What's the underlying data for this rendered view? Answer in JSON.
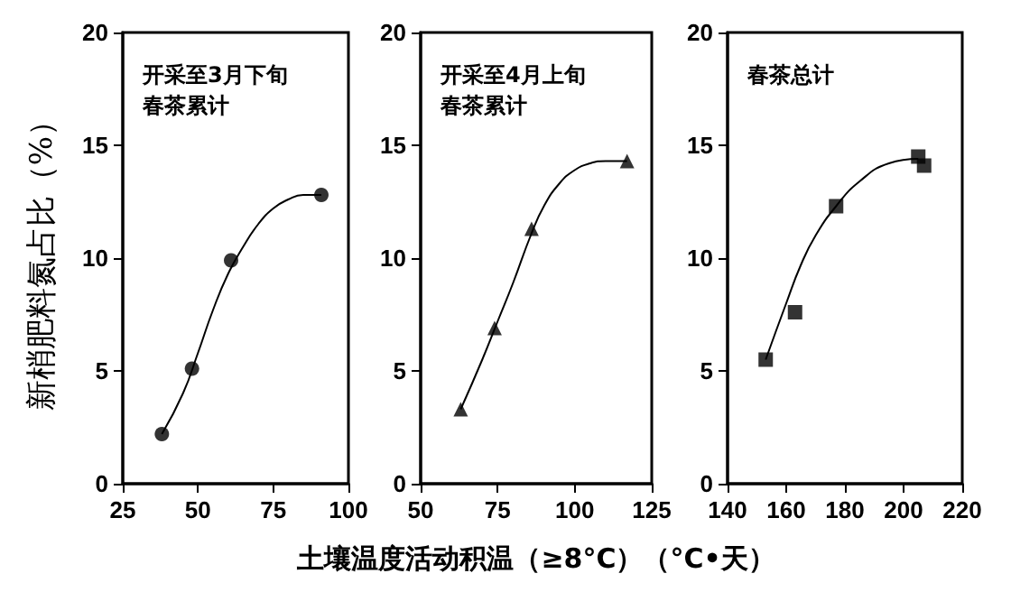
{
  "chart_data": [
    {
      "type": "scatter",
      "title": "开采至3月下旬春茶累计",
      "ylabel": "新梢肥料氮占比（%）",
      "xlim": [
        25,
        100
      ],
      "xticks": [
        25,
        50,
        75,
        100
      ],
      "ylim": [
        0,
        20
      ],
      "yticks": [
        0,
        5,
        10,
        15,
        20
      ],
      "grid": false,
      "series": [
        {
          "color": "#000000",
          "marker": "circle",
          "x": [
            38,
            48,
            61,
            91
          ],
          "values": [
            2.2,
            5.1,
            9.9,
            12.8
          ]
        },
        {
          "type": "line",
          "color": "#000000",
          "marker": "none",
          "x": [
            38,
            45,
            50,
            55,
            60,
            65,
            70,
            75,
            80,
            85,
            91
          ],
          "values": [
            2.2,
            4,
            5.8,
            7.7,
            9.3,
            10.5,
            11.5,
            12.2,
            12.6,
            12.8,
            12.8
          ]
        }
      ]
    },
    {
      "type": "scatter",
      "title": "开采至4月上旬春茶累计",
      "xlabel": "土壤温度活动积温（≥8°C）（°C•天）",
      "xlim": [
        50,
        125
      ],
      "xticks": [
        50,
        75,
        100,
        125
      ],
      "ylim": [
        0,
        20
      ],
      "yticks": [
        0,
        5,
        10,
        15,
        20
      ],
      "grid": false,
      "series": [
        {
          "color": "#000000",
          "marker": "triangle",
          "x": [
            63,
            74,
            86,
            117
          ],
          "values": [
            3.3,
            6.9,
            11.3,
            14.3
          ]
        },
        {
          "type": "line",
          "color": "#000000",
          "marker": "none",
          "x": [
            63,
            70,
            75,
            80,
            86,
            90,
            95,
            100,
            105,
            110,
            117
          ],
          "values": [
            3.3,
            5.5,
            7.2,
            8.9,
            11.1,
            12.3,
            13.3,
            13.9,
            14.2,
            14.3,
            14.3
          ]
        }
      ]
    },
    {
      "type": "scatter",
      "title": "春茶总计",
      "xlim": [
        140,
        220
      ],
      "xticks": [
        140,
        160,
        180,
        200,
        220
      ],
      "ylim": [
        0,
        20
      ],
      "yticks": [
        0,
        5,
        10,
        15,
        20
      ],
      "grid": false,
      "series": [
        {
          "color": "#000000",
          "marker": "square",
          "x": [
            153,
            163,
            177,
            205,
            207
          ],
          "values": [
            5.5,
            7.6,
            12.3,
            14.5,
            14.1
          ]
        },
        {
          "type": "line",
          "color": "#000000",
          "marker": "none",
          "x": [
            153,
            160,
            165,
            170,
            177,
            185,
            195,
            205
          ],
          "values": [
            5.5,
            8,
            9.7,
            11,
            12.3,
            13.4,
            14.2,
            14.4
          ]
        }
      ]
    }
  ]
}
